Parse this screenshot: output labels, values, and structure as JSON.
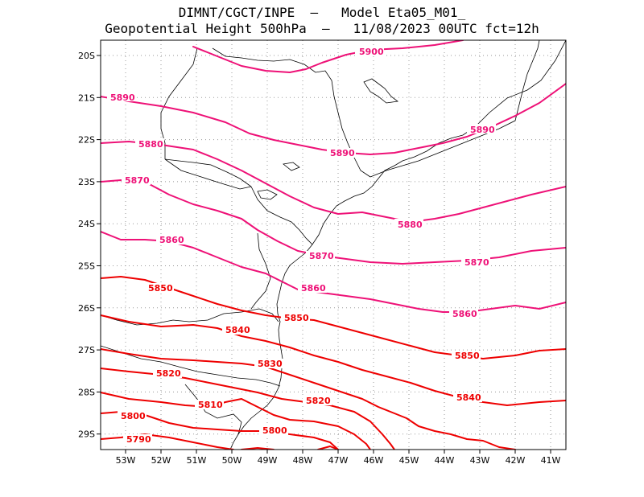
{
  "header": {
    "title_line1": "DIMNT/CGCT/INPE  –   Model Eta05_M01_",
    "title_line2": "Geopotential Height 500hPa  –   11/08/2023 00UTC fct=12h"
  },
  "colors": {
    "high": "#ee1177",
    "low": "#ee0000",
    "coast": "#000000",
    "grid": "#999999"
  },
  "axes": {
    "lat_labels": [
      "20S",
      "21S",
      "22S",
      "23S",
      "24S",
      "25S",
      "26S",
      "27S",
      "28S",
      "29S"
    ],
    "lon_labels": [
      "53W",
      "52W",
      "51W",
      "50W",
      "49W",
      "48W",
      "47W",
      "46W",
      "45W",
      "44W",
      "43W",
      "42W",
      "41W"
    ]
  },
  "contours": [
    {
      "level": 5900,
      "label": "5900"
    },
    {
      "level": 5890,
      "label": "5890"
    },
    {
      "level": 5880,
      "label": "5880"
    },
    {
      "level": 5870,
      "label": "5870"
    },
    {
      "level": 5860,
      "label": "5860"
    },
    {
      "level": 5850,
      "label": "5850"
    },
    {
      "level": 5840,
      "label": "5840"
    },
    {
      "level": 5830,
      "label": "5830"
    },
    {
      "level": 5820,
      "label": "5820"
    },
    {
      "level": 5810,
      "label": "5810"
    },
    {
      "level": 5800,
      "label": "5800"
    },
    {
      "level": 5790,
      "label": "5790"
    }
  ]
}
